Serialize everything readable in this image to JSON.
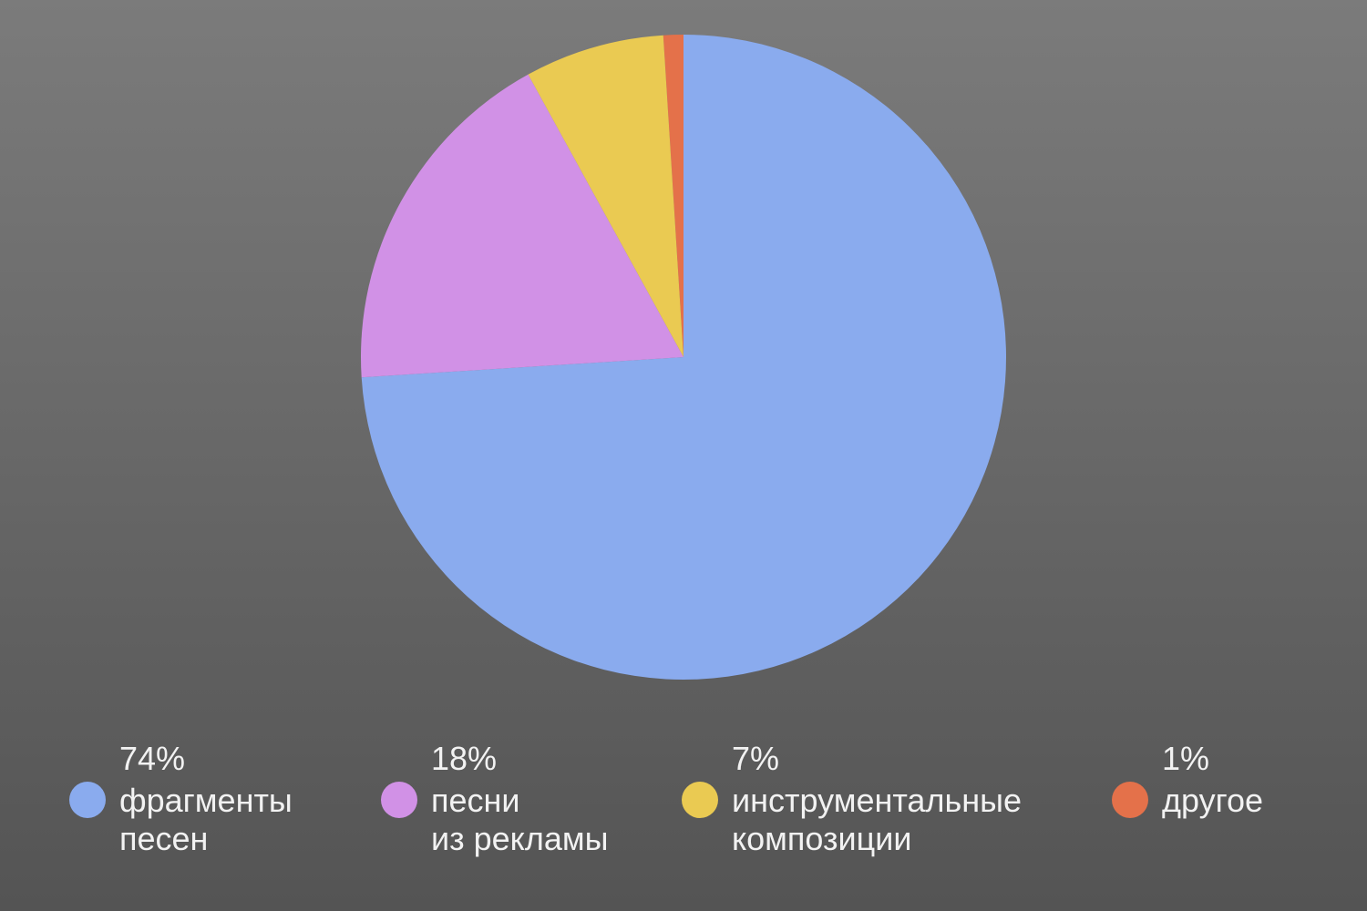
{
  "chart_data": {
    "type": "pie",
    "categories": [
      "фрагменты\nпесен",
      "песни\nиз рекламы",
      "инструментальные\nкомпозиции",
      "другое"
    ],
    "values": [
      74,
      18,
      7,
      1
    ],
    "value_labels": [
      "74%",
      "18%",
      "7%",
      "1%"
    ],
    "colors": [
      "#8aabee",
      "#d191e6",
      "#eaca52",
      "#e4714a"
    ]
  }
}
